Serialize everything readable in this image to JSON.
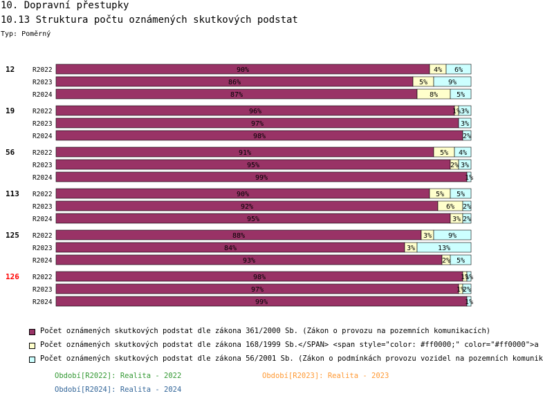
{
  "header": {
    "title": "10. Dopravní přestupky",
    "subtitle": "10.13 Struktura počtu oznámených skutkových podstat",
    "type_label": "Typ: Poměrný"
  },
  "chart_data": {
    "type": "bar",
    "stacked": true,
    "orientation": "horizontal",
    "normalized": true,
    "unit": "%",
    "groups": [
      {
        "name": "12",
        "highlight": false,
        "rows": [
          {
            "period": "R2022",
            "values": [
              90,
              4,
              6
            ]
          },
          {
            "period": "R2023",
            "values": [
              86,
              5,
              9
            ]
          },
          {
            "period": "R2024",
            "values": [
              87,
              8,
              5
            ]
          }
        ]
      },
      {
        "name": "19",
        "highlight": false,
        "rows": [
          {
            "period": "R2022",
            "values": [
              96,
              1,
              3
            ]
          },
          {
            "period": "R2023",
            "values": [
              97,
              0,
              3
            ]
          },
          {
            "period": "R2024",
            "values": [
              98,
              0,
              2
            ]
          }
        ]
      },
      {
        "name": "56",
        "highlight": false,
        "rows": [
          {
            "period": "R2022",
            "values": [
              91,
              5,
              4
            ]
          },
          {
            "period": "R2023",
            "values": [
              95,
              2,
              3
            ]
          },
          {
            "period": "R2024",
            "values": [
              99,
              0,
              1
            ]
          }
        ]
      },
      {
        "name": "113",
        "highlight": false,
        "rows": [
          {
            "period": "R2022",
            "values": [
              90,
              5,
              5
            ]
          },
          {
            "period": "R2023",
            "values": [
              92,
              6,
              2
            ]
          },
          {
            "period": "R2024",
            "values": [
              95,
              3,
              2
            ]
          }
        ]
      },
      {
        "name": "125",
        "highlight": false,
        "rows": [
          {
            "period": "R2022",
            "values": [
              88,
              3,
              9
            ]
          },
          {
            "period": "R2023",
            "values": [
              84,
              3,
              13
            ]
          },
          {
            "period": "R2024",
            "values": [
              93,
              2,
              5
            ]
          }
        ]
      },
      {
        "name": "126",
        "highlight": true,
        "rows": [
          {
            "period": "R2022",
            "values": [
              98,
              1,
              1
            ]
          },
          {
            "period": "R2023",
            "values": [
              97,
              1,
              2
            ]
          },
          {
            "period": "R2024",
            "values": [
              99,
              0,
              1
            ]
          }
        ]
      }
    ],
    "series": [
      {
        "name": "Počet oznámených skutkových podstat dle zákona 361/2000 Sb. (Zákon o provozu na pozemních komunikacích)",
        "color": "#993366"
      },
      {
        "name": "Počet oznámených skutkových podstat dle zákona 168/1999 Sb.</SPAN> <span style=\"color: #ff0000;\" color=\"#ff0000\">a",
        "color": "#ffffcc"
      },
      {
        "name": "Počet oznámených skutkových podstat dle zákona 56/2001 Sb. (Zákon o podmínkách provozu vozidel na pozemních komunik",
        "color": "#ccffff"
      }
    ],
    "periods": [
      {
        "label": "Období[R2022]: Realita - 2022",
        "color": "#339933"
      },
      {
        "label": "Období[R2023]: Realita - 2023",
        "color": "#ff9933"
      },
      {
        "label": "Období[R2024]: Realita - 2024",
        "color": "#336699"
      }
    ]
  }
}
